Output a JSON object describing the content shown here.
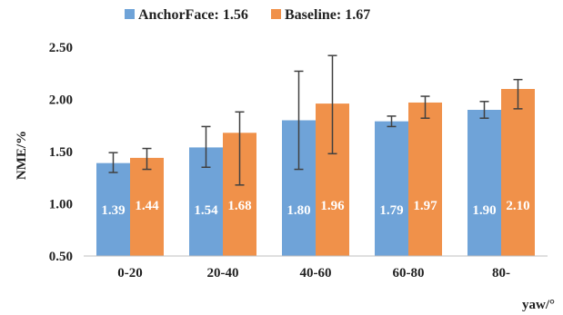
{
  "chart_data": {
    "type": "bar",
    "categories": [
      "0-20",
      "20-40",
      "40-60",
      "60-80",
      "80-"
    ],
    "series": [
      {
        "name": "AnchorFace: 1.56",
        "color": "#6fa3d8",
        "values": [
          1.39,
          1.54,
          1.8,
          1.79,
          1.9
        ],
        "labels": [
          "1.39",
          "1.54",
          "1.80",
          "1.79",
          "1.90"
        ],
        "error_low": [
          1.3,
          1.35,
          1.33,
          1.74,
          1.82
        ],
        "error_high": [
          1.49,
          1.74,
          2.27,
          1.84,
          1.98
        ]
      },
      {
        "name": "Baseline: 1.67",
        "color": "#f0914a",
        "values": [
          1.44,
          1.68,
          1.96,
          1.97,
          2.1
        ],
        "labels": [
          "1.44",
          "1.68",
          "1.96",
          "1.97",
          "2.10"
        ],
        "error_low": [
          1.33,
          1.18,
          1.48,
          1.82,
          1.91
        ],
        "error_high": [
          1.53,
          1.88,
          2.42,
          2.03,
          2.19
        ]
      }
    ],
    "xlabel": "yaw/°",
    "ylabel": "NME/%",
    "ylim": [
      0.5,
      2.5
    ],
    "yticks": [
      "0.50",
      "1.00",
      "1.50",
      "2.00",
      "2.50"
    ],
    "legend_position": "top",
    "grid": false
  }
}
